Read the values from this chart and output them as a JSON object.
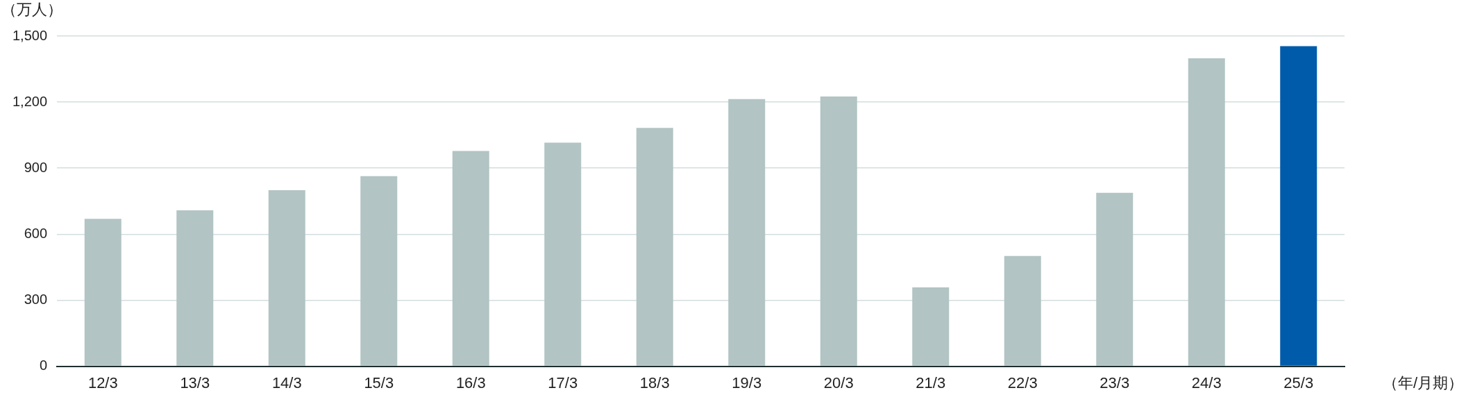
{
  "chart_data": {
    "type": "bar",
    "ylabel": "（万人）",
    "xlabel": "（年/月期）",
    "categories": [
      "12/3",
      "13/3",
      "14/3",
      "15/3",
      "16/3",
      "17/3",
      "18/3",
      "19/3",
      "20/3",
      "21/3",
      "22/3",
      "23/3",
      "24/3",
      "25/3"
    ],
    "values": [
      670,
      708,
      800,
      864,
      978,
      1016,
      1083,
      1214,
      1226,
      358,
      501,
      788,
      1399,
      1454
    ],
    "colors": [
      "#b2c4c3",
      "#b2c4c3",
      "#b2c4c3",
      "#b2c4c3",
      "#b2c4c3",
      "#b2c4c3",
      "#b2c4c3",
      "#b2c4c3",
      "#b2c4c3",
      "#b2c4c3",
      "#b2c4c3",
      "#b2c4c3",
      "#b2c4c3",
      "#005bab"
    ],
    "ylim": [
      0,
      1500
    ],
    "yticks": [
      0,
      300,
      600,
      900,
      {
        "value": 1200,
        "label": "1,200"
      },
      {
        "value": 1500,
        "label": "1,500"
      }
    ],
    "grid": "y",
    "legend": false
  }
}
